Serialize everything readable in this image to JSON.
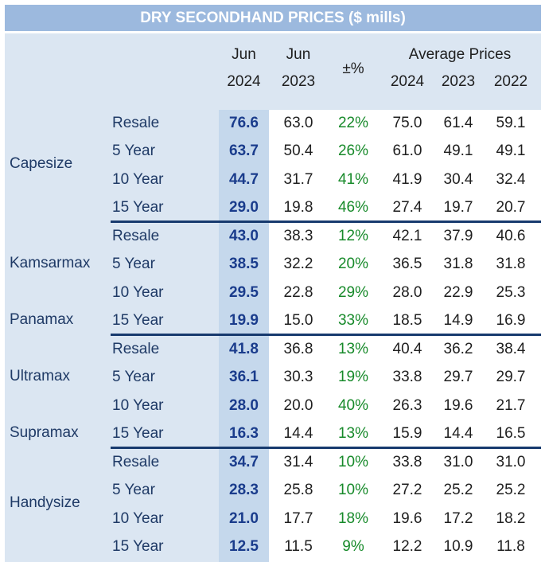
{
  "title": "DRY SECONDHAND PRICES ($ mills)",
  "headers": {
    "jun2024": [
      "Jun",
      "2024"
    ],
    "jun2023": [
      "Jun",
      "2023"
    ],
    "pct": "±%",
    "avg_title": "Average Prices",
    "avg_years": [
      "2024",
      "2023",
      "2022"
    ]
  },
  "groups": [
    "Capesize",
    "Kamsarmax",
    "Panamax",
    "Ultramax",
    "Supramax",
    "Handysize"
  ],
  "rows": [
    {
      "label": "Resale",
      "jun24": "76.6",
      "jun23": "63.0",
      "pct": "22%",
      "a24": "75.0",
      "a23": "61.4",
      "a22": "59.1"
    },
    {
      "label": "5 Year",
      "jun24": "63.7",
      "jun23": "50.4",
      "pct": "26%",
      "a24": "61.0",
      "a23": "49.1",
      "a22": "49.1"
    },
    {
      "label": "10 Year",
      "jun24": "44.7",
      "jun23": "31.7",
      "pct": "41%",
      "a24": "41.9",
      "a23": "30.4",
      "a22": "32.4"
    },
    {
      "label": "15 Year",
      "jun24": "29.0",
      "jun23": "19.8",
      "pct": "46%",
      "a24": "27.4",
      "a23": "19.7",
      "a22": "20.7"
    },
    {
      "label": "Resale",
      "jun24": "43.0",
      "jun23": "38.3",
      "pct": "12%",
      "a24": "42.1",
      "a23": "37.9",
      "a22": "40.6"
    },
    {
      "label": "5 Year",
      "jun24": "38.5",
      "jun23": "32.2",
      "pct": "20%",
      "a24": "36.5",
      "a23": "31.8",
      "a22": "31.8"
    },
    {
      "label": "10 Year",
      "jun24": "29.5",
      "jun23": "22.8",
      "pct": "29%",
      "a24": "28.0",
      "a23": "22.9",
      "a22": "25.3"
    },
    {
      "label": "15 Year",
      "jun24": "19.9",
      "jun23": "15.0",
      "pct": "33%",
      "a24": "18.5",
      "a23": "14.9",
      "a22": "16.9"
    },
    {
      "label": "Resale",
      "jun24": "41.8",
      "jun23": "36.8",
      "pct": "13%",
      "a24": "40.4",
      "a23": "36.2",
      "a22": "38.4"
    },
    {
      "label": "5 Year",
      "jun24": "36.1",
      "jun23": "30.3",
      "pct": "19%",
      "a24": "33.8",
      "a23": "29.7",
      "a22": "29.7"
    },
    {
      "label": "10 Year",
      "jun24": "28.0",
      "jun23": "20.0",
      "pct": "40%",
      "a24": "26.3",
      "a23": "19.6",
      "a22": "21.7"
    },
    {
      "label": "15 Year",
      "jun24": "16.3",
      "jun23": "14.4",
      "pct": "13%",
      "a24": "15.9",
      "a23": "14.4",
      "a22": "16.5"
    },
    {
      "label": "Resale",
      "jun24": "34.7",
      "jun23": "31.4",
      "pct": "10%",
      "a24": "33.8",
      "a23": "31.0",
      "a22": "31.0"
    },
    {
      "label": "5 Year",
      "jun24": "28.3",
      "jun23": "25.8",
      "pct": "10%",
      "a24": "27.2",
      "a23": "25.2",
      "a22": "25.2"
    },
    {
      "label": "10 Year",
      "jun24": "21.0",
      "jun23": "17.7",
      "pct": "18%",
      "a24": "19.6",
      "a23": "17.2",
      "a22": "18.2"
    },
    {
      "label": "15 Year",
      "jun24": "12.5",
      "jun23": "11.5",
      "pct": "9%",
      "a24": "12.2",
      "a23": "10.9",
      "a22": "11.8"
    }
  ],
  "colors": {
    "title_bar": "#9cb9de",
    "panel": "#dbe6f2",
    "highlight_column": "#c5d8ec",
    "emphasis_text": "#1a3c8c",
    "pct_text": "#178a2a",
    "separator": "#173a6e"
  }
}
